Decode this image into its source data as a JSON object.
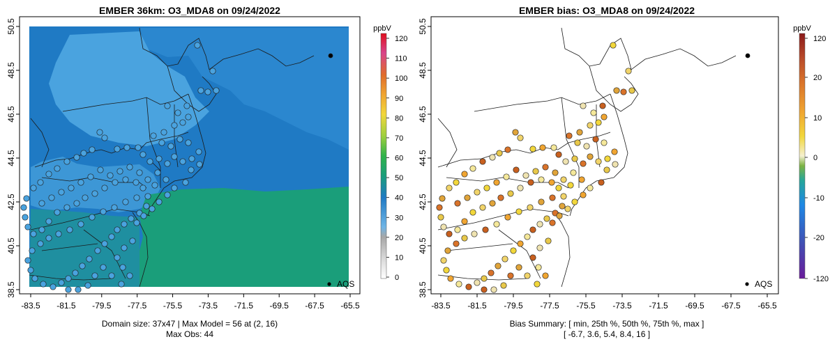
{
  "left_panel": {
    "title": "EMBER 36km: O3_MDA8 on 09/24/2022",
    "x_ticks": [
      "-83.5",
      "-81.5",
      "-79.5",
      "-77.5",
      "-75.5",
      "-73.5",
      "-71.5",
      "-69.5",
      "-67.5",
      "-65.5"
    ],
    "y_ticks": [
      "38.5",
      "40.5",
      "42.5",
      "44.5",
      "46.5",
      "48.5",
      "50.5"
    ],
    "colorbar": {
      "unit": "ppbV",
      "labels": [
        "0",
        "10",
        "20",
        "30",
        "40",
        "50",
        "60",
        "70",
        "80",
        "90",
        "100",
        "110",
        "120"
      ],
      "colors": [
        "#ffffff",
        "#d9d9d9",
        "#a6a6a6",
        "#4aa3df",
        "#1f7ac4",
        "#1a9e7a",
        "#2fb34a",
        "#9ccf3d",
        "#f2d73b",
        "#f0a531",
        "#e06c2a",
        "#d8448a",
        "#e00f1e"
      ]
    },
    "legend_label": "AQS",
    "footer_line1": "Domain size: 37x47 | Max Model = 56 at (2, 16)",
    "footer_line2": "Max Obs: 44"
  },
  "right_panel": {
    "title": "EMBER bias: O3_MDA8 on 09/24/2022",
    "x_ticks": [
      "-83.5",
      "-81.5",
      "-79.5",
      "-77.5",
      "-75.5",
      "-73.5",
      "-71.5",
      "-69.5",
      "-67.5",
      "-65.5"
    ],
    "y_ticks": [
      "38.5",
      "40.5",
      "42.5",
      "44.5",
      "46.5",
      "48.5",
      "50.5"
    ],
    "colorbar": {
      "unit": "ppbV",
      "labels": [
        "-120",
        "-20",
        "-10",
        "0",
        "10",
        "20",
        "120"
      ],
      "colors": [
        "#6a1b9a",
        "#3f51b5",
        "#1e88e5",
        "#26a69a",
        "#7cb342",
        "#f5f0d0",
        "#f2d73b",
        "#f0a531",
        "#d9732a",
        "#b84a2a",
        "#8b1a1a"
      ]
    },
    "legend_label": "AQS",
    "footer_line1": "Bias Summary: [ min, 25th %, 50th %, 75th %, max ]",
    "footer_line2": "[ -6.7,   3.6,   5.4,   8.4,   16 ]"
  }
}
